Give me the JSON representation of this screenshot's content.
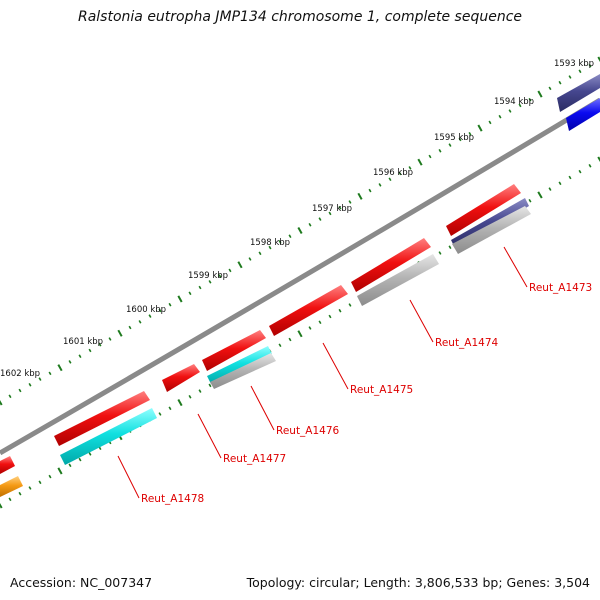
{
  "title": "Ralstonia eutropha JMP134 chromosome 1, complete sequence",
  "footer": {
    "accession": "Accession: NC_007347",
    "summary": "Topology: circular; Length: 3,806,533 bp; Genes: 3,504"
  },
  "colors": {
    "backbone": "#8a8a8a",
    "ticks": "#1e7a1e",
    "label_text": "#dd0000",
    "callout_line": "#dd0000"
  },
  "scale_labels": [
    "1593 kbp",
    "1594 kbp",
    "1595 kbp",
    "1596 kbp",
    "1597 kbp",
    "1598 kbp",
    "1599 kbp",
    "1600 kbp",
    "1601 kbp",
    "1602 kbp"
  ],
  "gene_labels": [
    "Reut_A1473",
    "Reut_A1474",
    "Reut_A1475",
    "Reut_A1476",
    "Reut_A1477",
    "Reut_A1478"
  ],
  "features": [
    {
      "name": "navy-feature",
      "color": "#46478f"
    },
    {
      "name": "blue-feature",
      "color": "#0a0af0"
    },
    {
      "name": "red-gene",
      "color": "#f01010"
    },
    {
      "name": "gray-feature",
      "color": "#b4b4b4"
    },
    {
      "name": "cyan-feature",
      "color": "#10e0e0"
    },
    {
      "name": "orange-feature",
      "color": "#f59a14"
    }
  ]
}
